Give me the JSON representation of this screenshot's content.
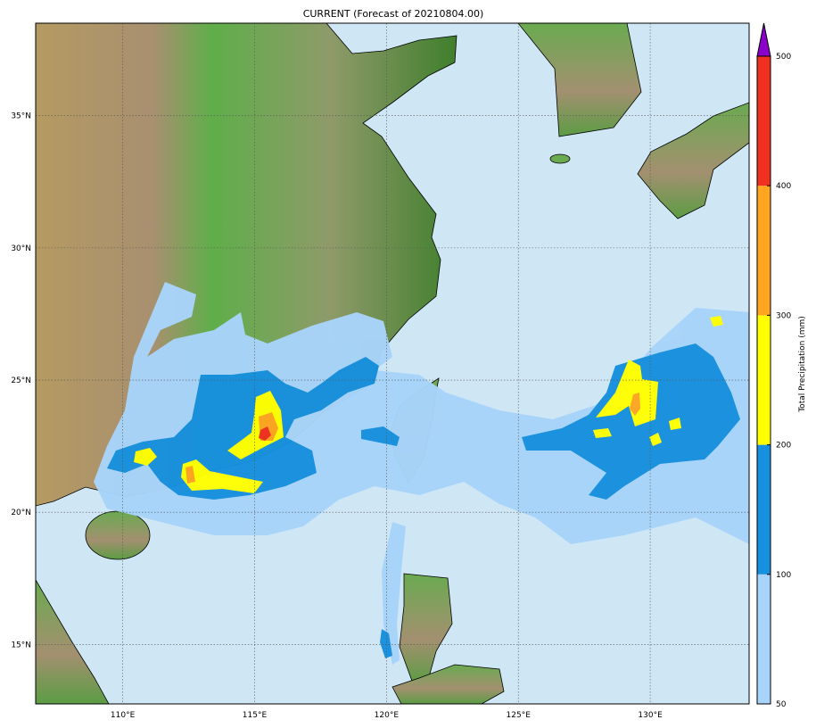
{
  "title": "CURRENT (Forecast of 20210804.00)",
  "map": {
    "lon_range": [
      106.7,
      133.75
    ],
    "lat_range": [
      12.75,
      38.5
    ],
    "lon_ticks": [
      {
        "value": 110,
        "label": "110°E"
      },
      {
        "value": 115,
        "label": "115°E"
      },
      {
        "value": 120,
        "label": "120°E"
      },
      {
        "value": 125,
        "label": "125°E"
      },
      {
        "value": 130,
        "label": "130°E"
      }
    ],
    "lat_ticks": [
      {
        "value": 15,
        "label": "15°N"
      },
      {
        "value": 20,
        "label": "20°N"
      },
      {
        "value": 25,
        "label": "25°N"
      },
      {
        "value": 30,
        "label": "30°N"
      },
      {
        "value": 35,
        "label": "35°N"
      }
    ],
    "grid": true,
    "ocean_color": "#cfe6f5"
  },
  "colorbar": {
    "label": "Total Precipitation (mm)",
    "extend": "max",
    "over_color": "#8a00c8",
    "levels": [
      {
        "from": 50,
        "to": 100,
        "color": "#a8d4fb"
      },
      {
        "from": 100,
        "to": 200,
        "color": "#1790df"
      },
      {
        "from": 200,
        "to": 300,
        "color": "#ffff00"
      },
      {
        "from": 300,
        "to": 400,
        "color": "#ffa520"
      },
      {
        "from": 400,
        "to": 500,
        "color": "#f03020"
      }
    ],
    "tick_labels": [
      "50",
      "100",
      "200",
      "300",
      "400",
      "500"
    ]
  }
}
